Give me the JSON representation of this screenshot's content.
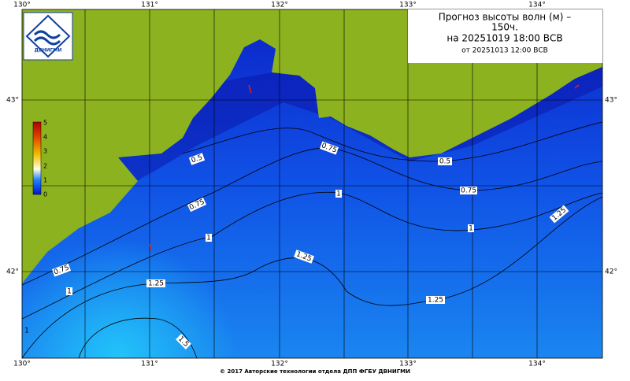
{
  "header": {
    "title_lines": [
      "Прогноз высоты волн (м) –",
      "150ч.",
      "на 20251019 18:00 ВСВ",
      "от 20251013 12:00 ВСВ"
    ],
    "logo": "ДВНИГМИ"
  },
  "axes": {
    "lon_top": [
      "130°",
      "131°",
      "132°",
      "133°",
      "134°"
    ],
    "lon_bottom": [
      "130°",
      "131°",
      "132°",
      "133°",
      "134°"
    ],
    "lat_left": [
      "43°",
      "42°"
    ],
    "lat_right": [
      "43°",
      "42°"
    ]
  },
  "colorbar": {
    "labels": [
      "5",
      "4",
      "3",
      "2",
      "1",
      "0"
    ]
  },
  "contours": {
    "labels": [
      "0.5",
      "0.5",
      "0.75",
      "0.75",
      "0.75",
      "0.75",
      "1",
      "1",
      "1",
      "1",
      "1",
      "1.25",
      "1.25",
      "1.25",
      "1.25",
      "1.5"
    ]
  },
  "footer": "© 2017 Авторские технологии отдела ДПП ФГБУ ДВНИГМИ"
}
